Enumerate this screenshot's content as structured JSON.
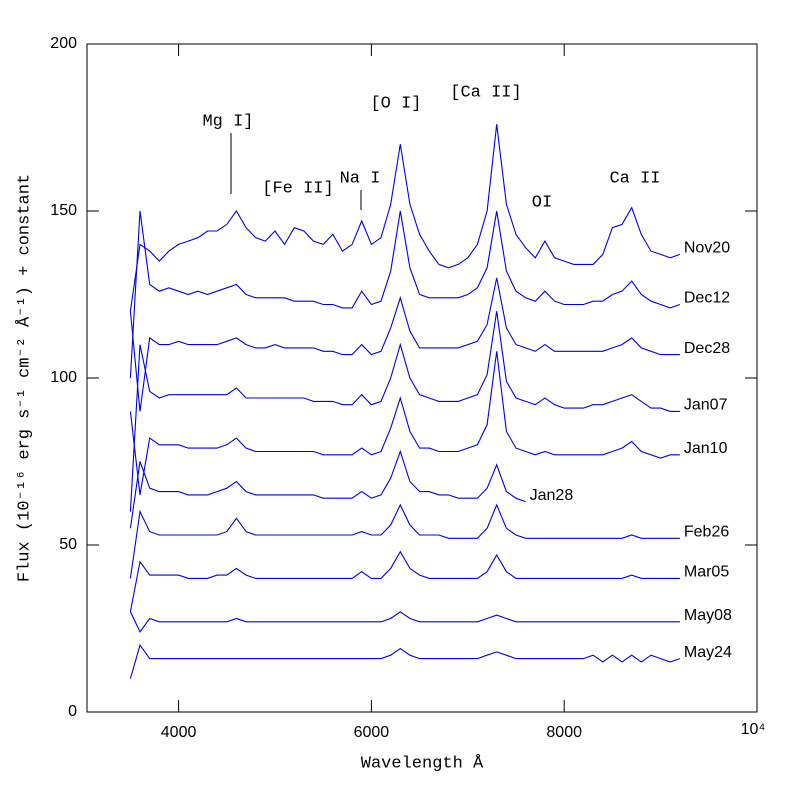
{
  "chart_data": {
    "type": "line",
    "xlabel": "Wavelength Å",
    "ylabel": "Flux (10⁻¹⁶ erg s⁻¹ cm⁻² Å⁻¹) + constant",
    "annotations": [
      "Mg I]",
      "[Fe II]",
      "Na I",
      "[O I]",
      "[Ca II]",
      "OI",
      "Ca II"
    ],
    "xlim": [
      3050,
      10000
    ],
    "ylim": [
      0,
      200
    ],
    "xticks": [
      4000,
      6000,
      8000,
      {
        "value": 10000,
        "label": "10⁴"
      }
    ],
    "yticks": [
      0,
      50,
      100,
      150,
      200
    ],
    "x": [
      3500,
      3600,
      3700,
      3800,
      3900,
      4000,
      4100,
      4200,
      4300,
      4400,
      4500,
      4600,
      4700,
      4800,
      4900,
      5000,
      5100,
      5200,
      5300,
      5400,
      5500,
      5600,
      5700,
      5800,
      5900,
      6000,
      6100,
      6200,
      6300,
      6400,
      6500,
      6600,
      6700,
      6800,
      6900,
      7000,
      7100,
      7200,
      7300,
      7400,
      7500,
      7600,
      7700,
      7800,
      7900,
      8000,
      8100,
      8200,
      8300,
      8400,
      8500,
      8600,
      8700,
      8800,
      8900,
      9000,
      9100,
      9200
    ],
    "series": [
      {
        "name": "Nov20",
        "color": "#0000e6",
        "values": [
          120,
          140,
          138,
          135,
          138,
          140,
          141,
          142,
          144,
          144,
          146,
          150,
          145,
          142,
          141,
          144,
          140,
          145,
          144,
          141,
          140,
          143,
          138,
          140,
          147,
          140,
          142,
          152,
          170,
          152,
          143,
          138,
          134,
          133,
          134,
          136,
          140,
          150,
          176,
          152,
          143,
          139,
          136,
          141,
          136,
          135,
          134,
          134,
          134,
          137,
          145,
          146,
          151,
          143,
          138,
          137,
          136,
          137
        ]
      },
      {
        "name": "Dec12",
        "color": "#0000e6",
        "values": [
          100,
          150,
          128,
          126,
          127,
          126,
          125,
          126,
          125,
          126,
          127,
          128,
          125,
          124,
          124,
          124,
          124,
          123,
          123,
          123,
          122,
          122,
          121,
          121,
          126,
          122,
          123,
          132,
          150,
          133,
          125,
          124,
          124,
          124,
          124,
          125,
          127,
          133,
          150,
          132,
          126,
          124,
          123,
          126,
          123,
          122,
          122,
          122,
          123,
          123,
          125,
          126,
          129,
          125,
          123,
          122,
          121,
          122
        ]
      },
      {
        "name": "Dec28",
        "color": "#0000e6",
        "values": [
          120,
          90,
          112,
          110,
          110,
          111,
          110,
          110,
          110,
          110,
          111,
          112,
          110,
          109,
          109,
          110,
          109,
          109,
          109,
          109,
          108,
          108,
          107,
          107,
          110,
          107,
          108,
          115,
          124,
          114,
          109,
          109,
          109,
          109,
          109,
          110,
          111,
          116,
          130,
          115,
          110,
          109,
          108,
          110,
          108,
          108,
          108,
          108,
          108,
          108,
          109,
          110,
          112,
          109,
          108,
          107,
          107,
          107
        ]
      },
      {
        "name": "Jan07",
        "color": "#0000e6",
        "values": [
          60,
          110,
          96,
          94,
          95,
          95,
          95,
          95,
          95,
          95,
          95,
          97,
          94,
          94,
          94,
          94,
          94,
          94,
          94,
          93,
          93,
          93,
          92,
          92,
          95,
          92,
          93,
          100,
          110,
          100,
          95,
          94,
          93,
          93,
          93,
          94,
          95,
          101,
          120,
          99,
          94,
          93,
          92,
          94,
          92,
          91,
          91,
          91,
          92,
          92,
          93,
          94,
          95,
          93,
          91,
          91,
          90,
          90
        ]
      },
      {
        "name": "Jan10",
        "color": "#0000e6",
        "values": [
          90,
          65,
          82,
          80,
          80,
          80,
          79,
          79,
          79,
          79,
          80,
          82,
          79,
          78,
          78,
          78,
          78,
          78,
          78,
          78,
          77,
          77,
          77,
          77,
          79,
          77,
          78,
          85,
          94,
          84,
          79,
          79,
          78,
          78,
          78,
          79,
          80,
          86,
          108,
          84,
          79,
          78,
          77,
          78,
          77,
          77,
          77,
          77,
          77,
          77,
          78,
          79,
          81,
          78,
          77,
          76,
          77,
          77
        ]
      },
      {
        "name": "Jan28",
        "color": "#0000e6",
        "values": [
          55,
          75,
          67,
          66,
          66,
          66,
          65,
          65,
          65,
          66,
          67,
          69,
          66,
          65,
          65,
          65,
          65,
          65,
          65,
          65,
          64,
          64,
          64,
          64,
          66,
          64,
          65,
          70,
          78,
          69,
          66,
          66,
          65,
          65,
          64,
          64,
          64,
          67,
          74,
          66,
          64,
          63,
          null,
          null,
          null,
          null,
          null,
          null,
          null,
          null,
          null,
          null,
          null,
          null,
          null,
          null,
          null,
          null
        ]
      },
      {
        "name": "Feb26",
        "color": "#0000e6",
        "values": [
          40,
          60,
          54,
          53,
          53,
          53,
          53,
          53,
          53,
          53,
          54,
          58,
          54,
          53,
          53,
          53,
          53,
          53,
          53,
          53,
          53,
          53,
          53,
          53,
          54,
          53,
          53,
          56,
          62,
          56,
          53,
          53,
          53,
          52,
          52,
          52,
          52,
          55,
          62,
          55,
          53,
          52,
          52,
          52,
          52,
          52,
          52,
          52,
          52,
          52,
          52,
          52,
          53,
          52,
          52,
          52,
          52,
          52
        ]
      },
      {
        "name": "Mar05",
        "color": "#0000e6",
        "values": [
          30,
          45,
          41,
          41,
          41,
          41,
          40,
          40,
          40,
          41,
          41,
          43,
          41,
          40,
          40,
          40,
          40,
          40,
          40,
          40,
          40,
          40,
          40,
          40,
          42,
          40,
          40,
          43,
          48,
          43,
          41,
          40,
          40,
          40,
          40,
          40,
          40,
          42,
          47,
          42,
          40,
          40,
          40,
          40,
          40,
          40,
          40,
          40,
          40,
          40,
          40,
          40,
          41,
          40,
          40,
          40,
          40,
          40
        ]
      },
      {
        "name": "May08",
        "color": "#0000e6",
        "values": [
          30,
          24,
          28,
          27,
          27,
          27,
          27,
          27,
          27,
          27,
          27,
          28,
          27,
          27,
          27,
          27,
          27,
          27,
          27,
          27,
          27,
          27,
          27,
          27,
          27,
          27,
          27,
          28,
          30,
          28,
          27,
          27,
          27,
          27,
          27,
          27,
          27,
          28,
          29,
          28,
          27,
          27,
          27,
          27,
          27,
          27,
          27,
          27,
          27,
          27,
          27,
          27,
          27,
          27,
          27,
          27,
          27,
          27
        ]
      },
      {
        "name": "May24",
        "color": "#0000e6",
        "values": [
          10,
          20,
          16,
          16,
          16,
          16,
          16,
          16,
          16,
          16,
          16,
          16,
          16,
          16,
          16,
          16,
          16,
          16,
          16,
          16,
          16,
          16,
          16,
          16,
          16,
          16,
          16,
          17,
          19,
          17,
          16,
          16,
          16,
          16,
          16,
          16,
          16,
          17,
          18,
          17,
          16,
          16,
          16,
          16,
          16,
          16,
          16,
          16,
          17,
          15,
          17,
          15,
          17,
          15,
          17,
          16,
          15,
          16
        ]
      }
    ]
  }
}
